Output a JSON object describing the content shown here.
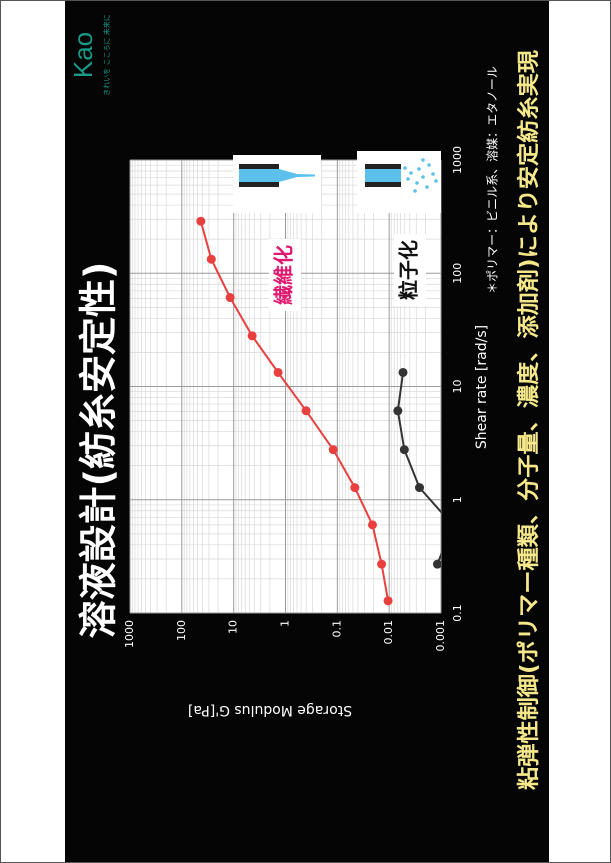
{
  "chart_data": {
    "type": "line",
    "title": "溶液設計(紡糸安定性)",
    "logo": "Kao",
    "tagline": "きれいを こころに 未来に",
    "x_label": "Shear rate [rad/s]",
    "y_label": "Storage Modulus G'[Pa]",
    "footnote": "＊ポリマー：ビニル系、溶媒：エタノール",
    "conclusion": "粘弾性制御(ポリマー種類、分子量、濃度、添加剤)により安定紡糸実現",
    "xlim": [
      0.1,
      1000
    ],
    "ylim": [
      0.001,
      1000
    ],
    "xticks": [
      0.1,
      1,
      10,
      100,
      1000
    ],
    "yticks": [
      0.001,
      0.01,
      0.1,
      1,
      10,
      100,
      1000
    ],
    "log_x": true,
    "log_y": true,
    "grid": true,
    "series": [
      {
        "name": "繊維化",
        "color": "#e8403f",
        "label_color": "#e0186e",
        "x": [
          0.128,
          0.27,
          0.6,
          1.28,
          2.77,
          6.1,
          13.3,
          28,
          61,
          133,
          288
        ],
        "values": [
          0.0105,
          0.014,
          0.021,
          0.046,
          0.12,
          0.4,
          1.39,
          4.4,
          11.7,
          27,
          43
        ]
      },
      {
        "name": "粒子化",
        "color": "#333333",
        "label_color": "#111111",
        "x": [
          0.27,
          0.6,
          1.28,
          2.77,
          6.1,
          13.3
        ],
        "values": [
          0.00117,
          0.0006,
          0.0026,
          0.0051,
          0.0068,
          0.0054
        ]
      }
    ]
  }
}
